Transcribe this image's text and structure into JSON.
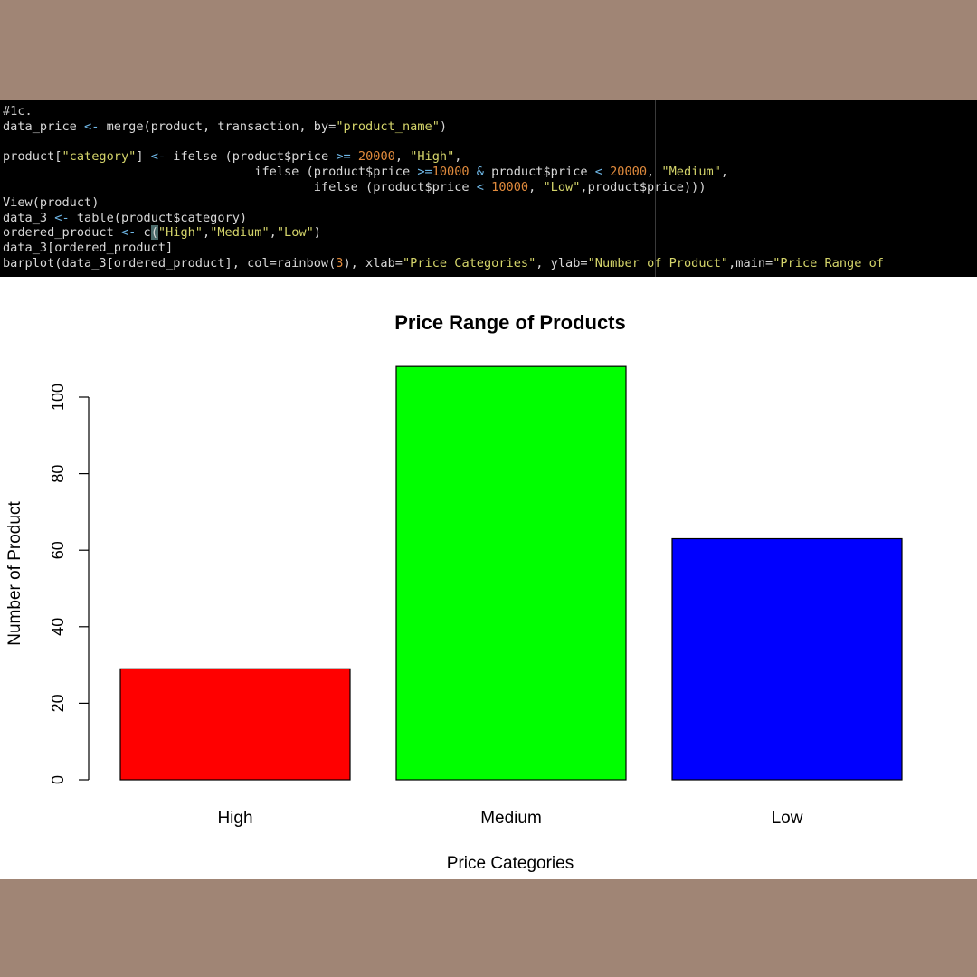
{
  "code": {
    "lines": [
      [
        {
          "t": "#1c.",
          "c": "comment"
        }
      ],
      [
        {
          "t": "data_price "
        },
        {
          "t": "<-",
          "c": "op"
        },
        {
          "t": " merge(product, transaction, by="
        },
        {
          "t": "\"product_name\"",
          "c": "str"
        },
        {
          "t": ")"
        }
      ],
      [
        {
          "t": ""
        }
      ],
      [
        {
          "t": "product["
        },
        {
          "t": "\"category\"",
          "c": "str"
        },
        {
          "t": "] "
        },
        {
          "t": "<-",
          "c": "op"
        },
        {
          "t": " ifelse (product$price "
        },
        {
          "t": ">=",
          "c": "op"
        },
        {
          "t": " "
        },
        {
          "t": "20000",
          "c": "num"
        },
        {
          "t": ", "
        },
        {
          "t": "\"High\"",
          "c": "str"
        },
        {
          "t": ","
        }
      ],
      [
        {
          "t": "                                  ifelse (product$price "
        },
        {
          "t": ">=",
          "c": "op"
        },
        {
          "t": "10000",
          "c": "num"
        },
        {
          "t": " "
        },
        {
          "t": "&",
          "c": "op"
        },
        {
          "t": " product$price "
        },
        {
          "t": "<",
          "c": "op"
        },
        {
          "t": " "
        },
        {
          "t": "20000",
          "c": "num"
        },
        {
          "t": ", "
        },
        {
          "t": "\"Medium\"",
          "c": "str"
        },
        {
          "t": ","
        }
      ],
      [
        {
          "t": "                                          ifelse (product$price "
        },
        {
          "t": "<",
          "c": "op"
        },
        {
          "t": " "
        },
        {
          "t": "10000",
          "c": "num"
        },
        {
          "t": ", "
        },
        {
          "t": "\"Low\"",
          "c": "str"
        },
        {
          "t": ",product$price)))"
        }
      ],
      [
        {
          "t": "View(product)"
        }
      ],
      [
        {
          "t": "data_3 "
        },
        {
          "t": "<-",
          "c": "op"
        },
        {
          "t": " table(product$category)"
        }
      ],
      [
        {
          "t": "ordered_product "
        },
        {
          "t": "<-",
          "c": "op"
        },
        {
          "t": " c"
        },
        {
          "t": "(",
          "c": "cursor"
        },
        {
          "t": "\"High\"",
          "c": "str"
        },
        {
          "t": ","
        },
        {
          "t": "\"Medium\"",
          "c": "str"
        },
        {
          "t": ","
        },
        {
          "t": "\"Low\"",
          "c": "str"
        },
        {
          "t": ")"
        }
      ],
      [
        {
          "t": "data_3[ordered_product]"
        }
      ],
      [
        {
          "t": "barplot(data_3[ordered_product], col=rainbow("
        },
        {
          "t": "3",
          "c": "num"
        },
        {
          "t": "), xlab="
        },
        {
          "t": "\"Price Categories\"",
          "c": "str"
        },
        {
          "t": ", ylab="
        },
        {
          "t": "\"Number of Product\"",
          "c": "str"
        },
        {
          "t": ",main="
        },
        {
          "t": "\"Price Range of",
          "c": "str"
        }
      ]
    ]
  },
  "chart_data": {
    "type": "bar",
    "title": "Price Range of Products",
    "xlabel": "Price Categories",
    "ylabel": "Number of Product",
    "categories": [
      "High",
      "Medium",
      "Low"
    ],
    "values": [
      29,
      108,
      63
    ],
    "colors": [
      "#ff0000",
      "#00ff00",
      "#0000ff"
    ],
    "ylim": [
      0,
      100
    ],
    "yticks": [
      0,
      20,
      40,
      60,
      80,
      100
    ],
    "grid": false,
    "legend": false
  }
}
